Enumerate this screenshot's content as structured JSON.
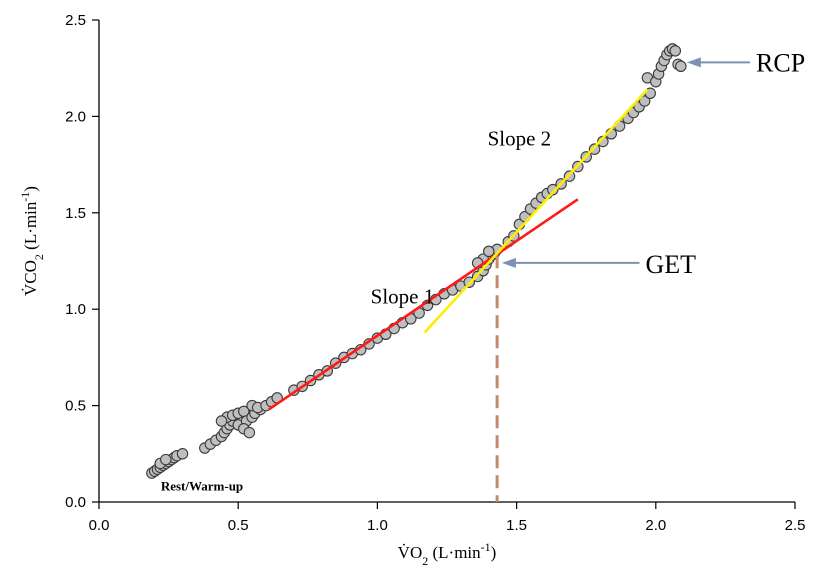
{
  "chart_data": {
    "type": "scatter",
    "xlabel": {
      "prefix": "V̇O",
      "sub": "2",
      "mid": " (L·min",
      "sup": "-1",
      "suffix": ")"
    },
    "ylabel": {
      "prefix": "V̇CO",
      "sub": "2",
      "mid": " (L·min",
      "sup": "-1",
      "suffix": ")"
    },
    "xlim": [
      0.0,
      2.5
    ],
    "ylim": [
      0.0,
      2.5
    ],
    "xticks": [
      "0.0",
      "0.5",
      "1.0",
      "1.5",
      "2.0",
      "2.5"
    ],
    "yticks": [
      "0.0",
      "0.5",
      "1.0",
      "1.5",
      "2.0",
      "2.5"
    ],
    "grid": false,
    "series": [
      {
        "marker": "circle",
        "color": "#bfbfbf",
        "points": [
          [
            0.19,
            0.15
          ],
          [
            0.2,
            0.16
          ],
          [
            0.21,
            0.17
          ],
          [
            0.22,
            0.18
          ],
          [
            0.23,
            0.19
          ],
          [
            0.24,
            0.2
          ],
          [
            0.25,
            0.21
          ],
          [
            0.26,
            0.22
          ],
          [
            0.27,
            0.23
          ],
          [
            0.28,
            0.24
          ],
          [
            0.3,
            0.25
          ],
          [
            0.22,
            0.2
          ],
          [
            0.24,
            0.22
          ],
          [
            0.38,
            0.28
          ],
          [
            0.4,
            0.3
          ],
          [
            0.42,
            0.32
          ],
          [
            0.44,
            0.34
          ],
          [
            0.45,
            0.36
          ],
          [
            0.46,
            0.38
          ],
          [
            0.47,
            0.4
          ],
          [
            0.48,
            0.42
          ],
          [
            0.46,
            0.44
          ],
          [
            0.48,
            0.45
          ],
          [
            0.5,
            0.46
          ],
          [
            0.52,
            0.47
          ],
          [
            0.5,
            0.4
          ],
          [
            0.53,
            0.42
          ],
          [
            0.55,
            0.44
          ],
          [
            0.56,
            0.46
          ],
          [
            0.58,
            0.48
          ],
          [
            0.55,
            0.5
          ],
          [
            0.57,
            0.49
          ],
          [
            0.6,
            0.5
          ],
          [
            0.62,
            0.52
          ],
          [
            0.64,
            0.54
          ],
          [
            0.52,
            0.38
          ],
          [
            0.54,
            0.36
          ],
          [
            0.44,
            0.42
          ],
          [
            0.7,
            0.58
          ],
          [
            0.73,
            0.6
          ],
          [
            0.76,
            0.63
          ],
          [
            0.79,
            0.66
          ],
          [
            0.82,
            0.68
          ],
          [
            0.85,
            0.72
          ],
          [
            0.88,
            0.75
          ],
          [
            0.91,
            0.77
          ],
          [
            0.94,
            0.79
          ],
          [
            0.97,
            0.82
          ],
          [
            1.0,
            0.85
          ],
          [
            1.03,
            0.87
          ],
          [
            1.06,
            0.9
          ],
          [
            1.09,
            0.93
          ],
          [
            1.12,
            0.95
          ],
          [
            1.15,
            0.98
          ],
          [
            1.18,
            1.02
          ],
          [
            1.21,
            1.05
          ],
          [
            1.24,
            1.08
          ],
          [
            1.27,
            1.1
          ],
          [
            1.3,
            1.12
          ],
          [
            1.33,
            1.14
          ],
          [
            1.36,
            1.17
          ],
          [
            1.38,
            1.2
          ],
          [
            1.39,
            1.23
          ],
          [
            1.4,
            1.26
          ],
          [
            1.41,
            1.28
          ],
          [
            1.42,
            1.29
          ],
          [
            1.43,
            1.31
          ],
          [
            1.38,
            1.26
          ],
          [
            1.36,
            1.24
          ],
          [
            1.4,
            1.3
          ],
          [
            1.47,
            1.35
          ],
          [
            1.49,
            1.38
          ],
          [
            1.51,
            1.44
          ],
          [
            1.53,
            1.48
          ],
          [
            1.55,
            1.52
          ],
          [
            1.57,
            1.55
          ],
          [
            1.59,
            1.58
          ],
          [
            1.61,
            1.6
          ],
          [
            1.63,
            1.62
          ],
          [
            1.66,
            1.65
          ],
          [
            1.69,
            1.69
          ],
          [
            1.72,
            1.74
          ],
          [
            1.75,
            1.79
          ],
          [
            1.78,
            1.83
          ],
          [
            1.81,
            1.87
          ],
          [
            1.84,
            1.91
          ],
          [
            1.87,
            1.95
          ],
          [
            1.9,
            1.99
          ],
          [
            1.92,
            2.02
          ],
          [
            1.94,
            2.05
          ],
          [
            1.96,
            2.08
          ],
          [
            1.98,
            2.12
          ],
          [
            1.97,
            2.2
          ],
          [
            2.0,
            2.18
          ],
          [
            2.01,
            2.22
          ],
          [
            2.02,
            2.26
          ],
          [
            2.03,
            2.29
          ],
          [
            2.04,
            2.32
          ],
          [
            2.05,
            2.34
          ],
          [
            2.06,
            2.35
          ],
          [
            2.07,
            2.34
          ],
          [
            2.08,
            2.27
          ],
          [
            2.09,
            2.26
          ]
        ]
      }
    ],
    "lines": [
      {
        "name": "Slope 1",
        "color": "#ff1a1a",
        "from": [
          0.61,
          0.48
        ],
        "to": [
          1.72,
          1.57
        ]
      },
      {
        "name": "Slope 2",
        "color": "#ffee00",
        "from": [
          1.17,
          0.88
        ],
        "to": [
          1.97,
          2.14
        ]
      }
    ],
    "vline": {
      "x": 1.43,
      "y_top": 1.28,
      "color": "#c48a6e"
    },
    "annotations": {
      "slope1": {
        "text": "Slope 1",
        "x": 1.09,
        "y": 1.03
      },
      "slope2": {
        "text": "Slope 2",
        "x": 1.51,
        "y": 1.85
      },
      "rest": {
        "text": "Rest/Warm-up",
        "x": 0.37,
        "y": 0.06
      },
      "get": {
        "text": "GET",
        "arrow_to": [
          1.44,
          1.24
        ],
        "text_at": [
          1.97,
          1.21
        ]
      },
      "rcp": {
        "text": "RCP",
        "arrow_to": [
          2.09,
          2.28
        ],
        "text_at": [
          2.36,
          2.27
        ]
      }
    },
    "arrow_color": "#7b93b3"
  }
}
